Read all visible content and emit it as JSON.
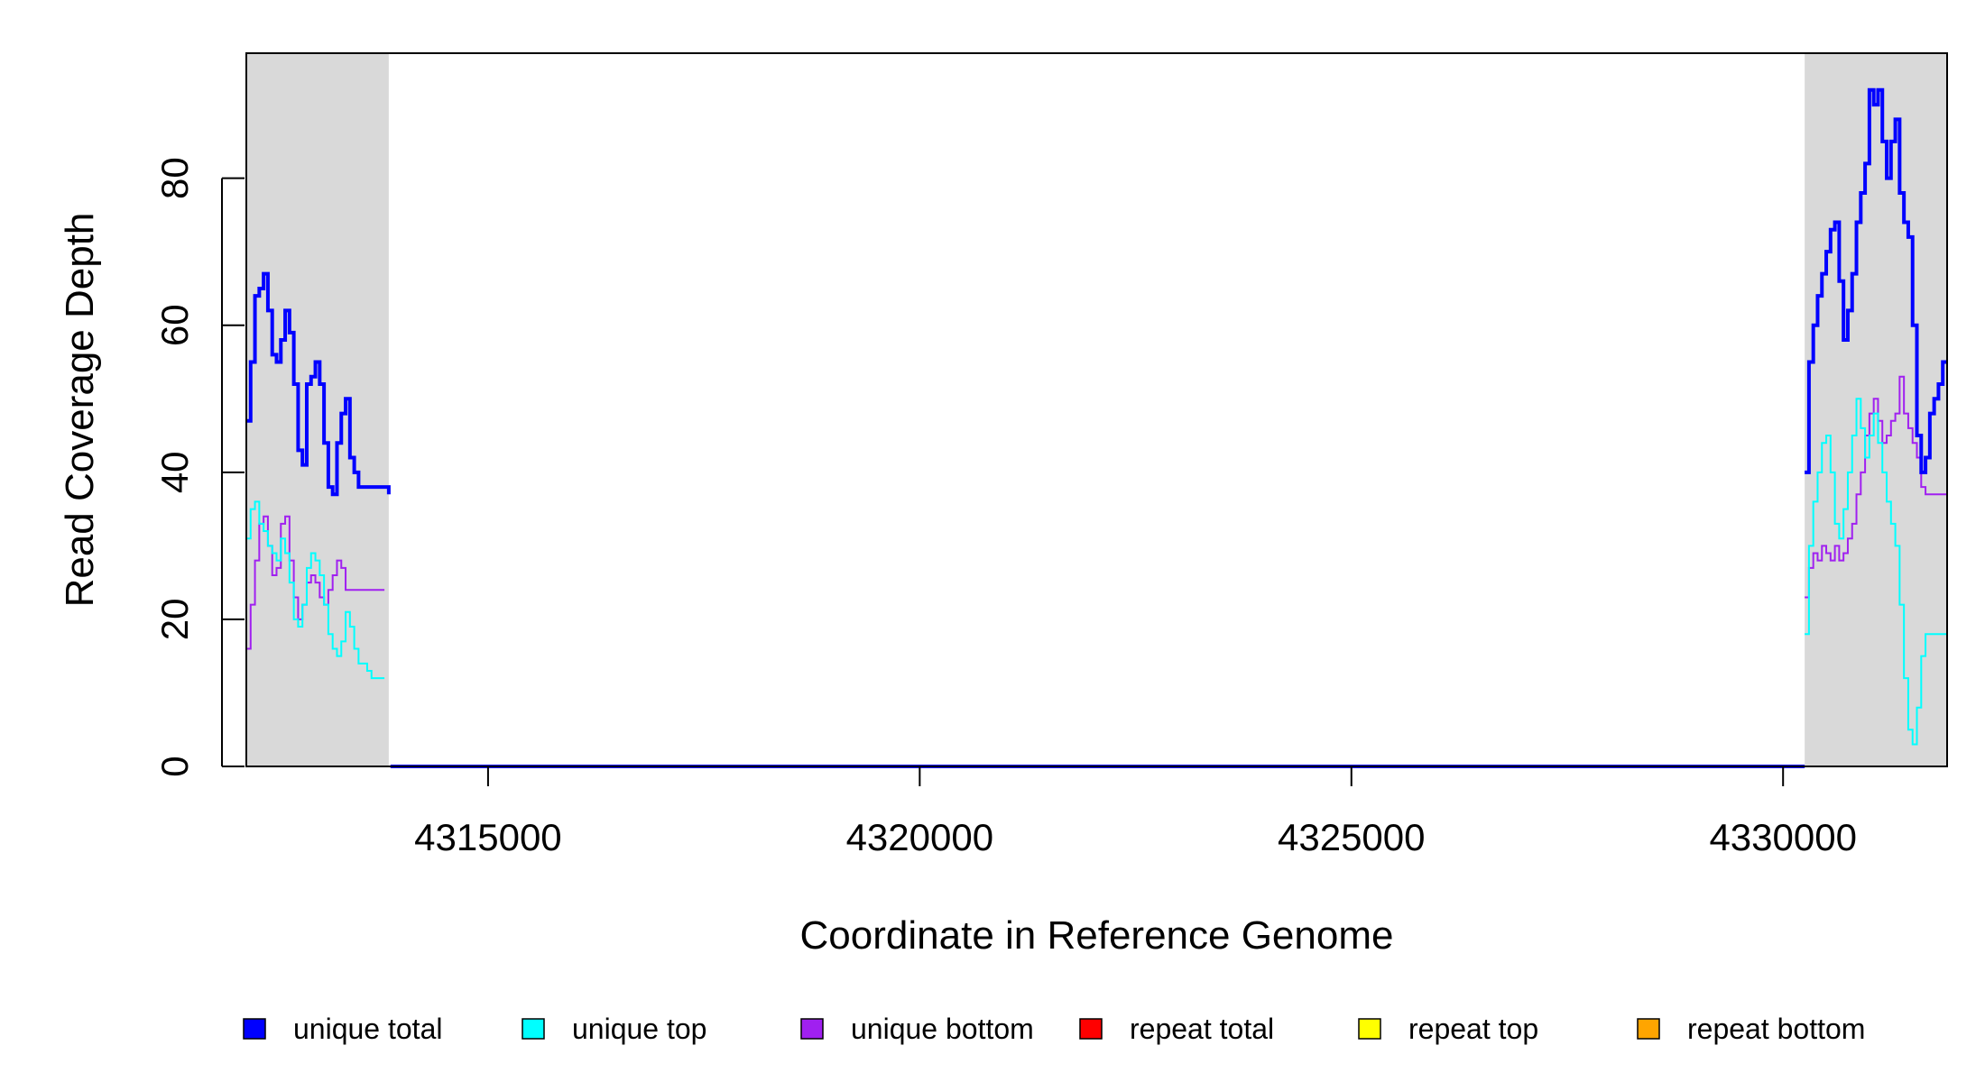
{
  "chart_data": {
    "type": "line",
    "title": "",
    "xlabel": "Coordinate in Reference Genome",
    "ylabel": "Read Coverage Depth",
    "xlim": [
      4312200,
      4331900
    ],
    "ylim": [
      0,
      97
    ],
    "x_ticks": [
      4315000,
      4320000,
      4325000,
      4330000
    ],
    "x_tick_labels": [
      "4315000",
      "4320000",
      "4325000",
      "4330000"
    ],
    "y_ticks": [
      0,
      20,
      40,
      60,
      80
    ],
    "y_tick_labels": [
      "0",
      "20",
      "40",
      "60",
      "80"
    ],
    "shaded_regions": [
      {
        "x0": 4312200,
        "x1": 4313850,
        "color": "#d9d9d9"
      },
      {
        "x0": 4330250,
        "x1": 4331900,
        "color": "#d9d9d9"
      }
    ],
    "legend_position": "bottom",
    "series": [
      {
        "name": "unique total",
        "color": "#0000ff",
        "segments": [
          {
            "x": [
              4312200,
              4312250,
              4312300,
              4312350,
              4312400,
              4312450,
              4312500,
              4312550,
              4312600,
              4312650,
              4312700,
              4312750,
              4312800,
              4312850,
              4312900,
              4312950,
              4313000,
              4313050,
              4313100,
              4313150,
              4313200,
              4313250,
              4313300,
              4313350,
              4313400,
              4313450,
              4313500,
              4313550,
              4313600,
              4313650,
              4313700,
              4313750,
              4313800,
              4313850
            ],
            "y": [
              47,
              55,
              64,
              65,
              67,
              62,
              56,
              55,
              58,
              62,
              59,
              52,
              43,
              41,
              52,
              53,
              55,
              52,
              44,
              38,
              37,
              44,
              48,
              50,
              42,
              40,
              38,
              38,
              38,
              38,
              38,
              38,
              38,
              37
            ]
          },
          {
            "x": [
              4313870,
              4330250
            ],
            "y": [
              0,
              0
            ]
          },
          {
            "x": [
              4330250,
              4330300,
              4330350,
              4330400,
              4330450,
              4330500,
              4330550,
              4330600,
              4330650,
              4330700,
              4330750,
              4330800,
              4330850,
              4330900,
              4330950,
              4331000,
              4331050,
              4331100,
              4331150,
              4331200,
              4331250,
              4331300,
              4331350,
              4331400,
              4331450,
              4331500,
              4331550,
              4331600,
              4331650,
              4331700,
              4331750,
              4331800,
              4331850,
              4331900
            ],
            "y": [
              40,
              55,
              60,
              64,
              67,
              70,
              73,
              74,
              66,
              58,
              62,
              67,
              74,
              78,
              82,
              92,
              90,
              92,
              85,
              80,
              85,
              88,
              78,
              74,
              72,
              60,
              45,
              40,
              42,
              48,
              50,
              52,
              55,
              55
            ]
          }
        ]
      },
      {
        "name": "unique top",
        "color": "#00ffff",
        "segments": [
          {
            "x": [
              4312200,
              4312250,
              4312300,
              4312350,
              4312400,
              4312450,
              4312500,
              4312550,
              4312600,
              4312650,
              4312700,
              4312750,
              4312800,
              4312850,
              4312900,
              4312950,
              4313000,
              4313050,
              4313100,
              4313150,
              4313200,
              4313250,
              4313300,
              4313350,
              4313400,
              4313450,
              4313500,
              4313550,
              4313600,
              4313650,
              4313700,
              4313750,
              4313800
            ],
            "y": [
              31,
              35,
              36,
              33,
              32,
              30,
              29,
              28,
              31,
              29,
              25,
              20,
              19,
              22,
              27,
              29,
              28,
              26,
              22,
              18,
              16,
              15,
              17,
              21,
              19,
              16,
              14,
              14,
              13,
              12,
              12,
              12,
              12
            ]
          },
          {
            "x": [
              4330250,
              4330300,
              4330350,
              4330400,
              4330450,
              4330500,
              4330550,
              4330600,
              4330650,
              4330700,
              4330750,
              4330800,
              4330850,
              4330900,
              4330950,
              4331000,
              4331050,
              4331100,
              4331150,
              4331200,
              4331250,
              4331300,
              4331350,
              4331400,
              4331450,
              4331500,
              4331550,
              4331600,
              4331650,
              4331700,
              4331750,
              4331800,
              4331850,
              4331900
            ],
            "y": [
              18,
              30,
              36,
              40,
              44,
              45,
              40,
              33,
              31,
              35,
              40,
              45,
              50,
              46,
              42,
              45,
              48,
              44,
              40,
              36,
              33,
              30,
              22,
              12,
              5,
              3,
              8,
              15,
              18,
              18,
              18,
              18,
              18,
              18
            ]
          }
        ]
      },
      {
        "name": "unique bottom",
        "color": "#a020f0",
        "segments": [
          {
            "x": [
              4312200,
              4312250,
              4312300,
              4312350,
              4312400,
              4312450,
              4312500,
              4312550,
              4312600,
              4312650,
              4312700,
              4312750,
              4312800,
              4312850,
              4312900,
              4312950,
              4313000,
              4313050,
              4313100,
              4313150,
              4313200,
              4313250,
              4313300,
              4313350,
              4313400,
              4313450,
              4313500,
              4313550,
              4313600,
              4313650,
              4313700,
              4313750,
              4313800
            ],
            "y": [
              16,
              22,
              28,
              33,
              34,
              30,
              26,
              27,
              33,
              34,
              28,
              23,
              20,
              22,
              25,
              26,
              25,
              23,
              22,
              24,
              26,
              28,
              27,
              24,
              24,
              24,
              24,
              24,
              24,
              24,
              24,
              24,
              24
            ]
          },
          {
            "x": [
              4330250,
              4330300,
              4330350,
              4330400,
              4330450,
              4330500,
              4330550,
              4330600,
              4330650,
              4330700,
              4330750,
              4330800,
              4330850,
              4330900,
              4330950,
              4331000,
              4331050,
              4331100,
              4331150,
              4331200,
              4331250,
              4331300,
              4331350,
              4331400,
              4331450,
              4331500,
              4331550,
              4331600,
              4331650,
              4331700,
              4331750,
              4331800,
              4331850,
              4331900
            ],
            "y": [
              23,
              27,
              29,
              28,
              30,
              29,
              28,
              30,
              28,
              29,
              31,
              33,
              37,
              40,
              45,
              48,
              50,
              47,
              44,
              45,
              47,
              48,
              53,
              48,
              46,
              44,
              42,
              38,
              37,
              37,
              37,
              37,
              37,
              37
            ]
          }
        ]
      },
      {
        "name": "repeat total",
        "color": "#ff0000",
        "segments": [
          {
            "x": [
              4312200,
              4331900
            ],
            "y": [
              0,
              0
            ]
          }
        ]
      },
      {
        "name": "repeat top",
        "color": "#ffff00",
        "segments": [
          {
            "x": [
              4312200,
              4331900
            ],
            "y": [
              0,
              0
            ]
          }
        ]
      },
      {
        "name": "repeat bottom",
        "color": "#ffa500",
        "segments": [
          {
            "x": [
              4312200,
              4331900
            ],
            "y": [
              0,
              0
            ]
          }
        ]
      }
    ]
  }
}
